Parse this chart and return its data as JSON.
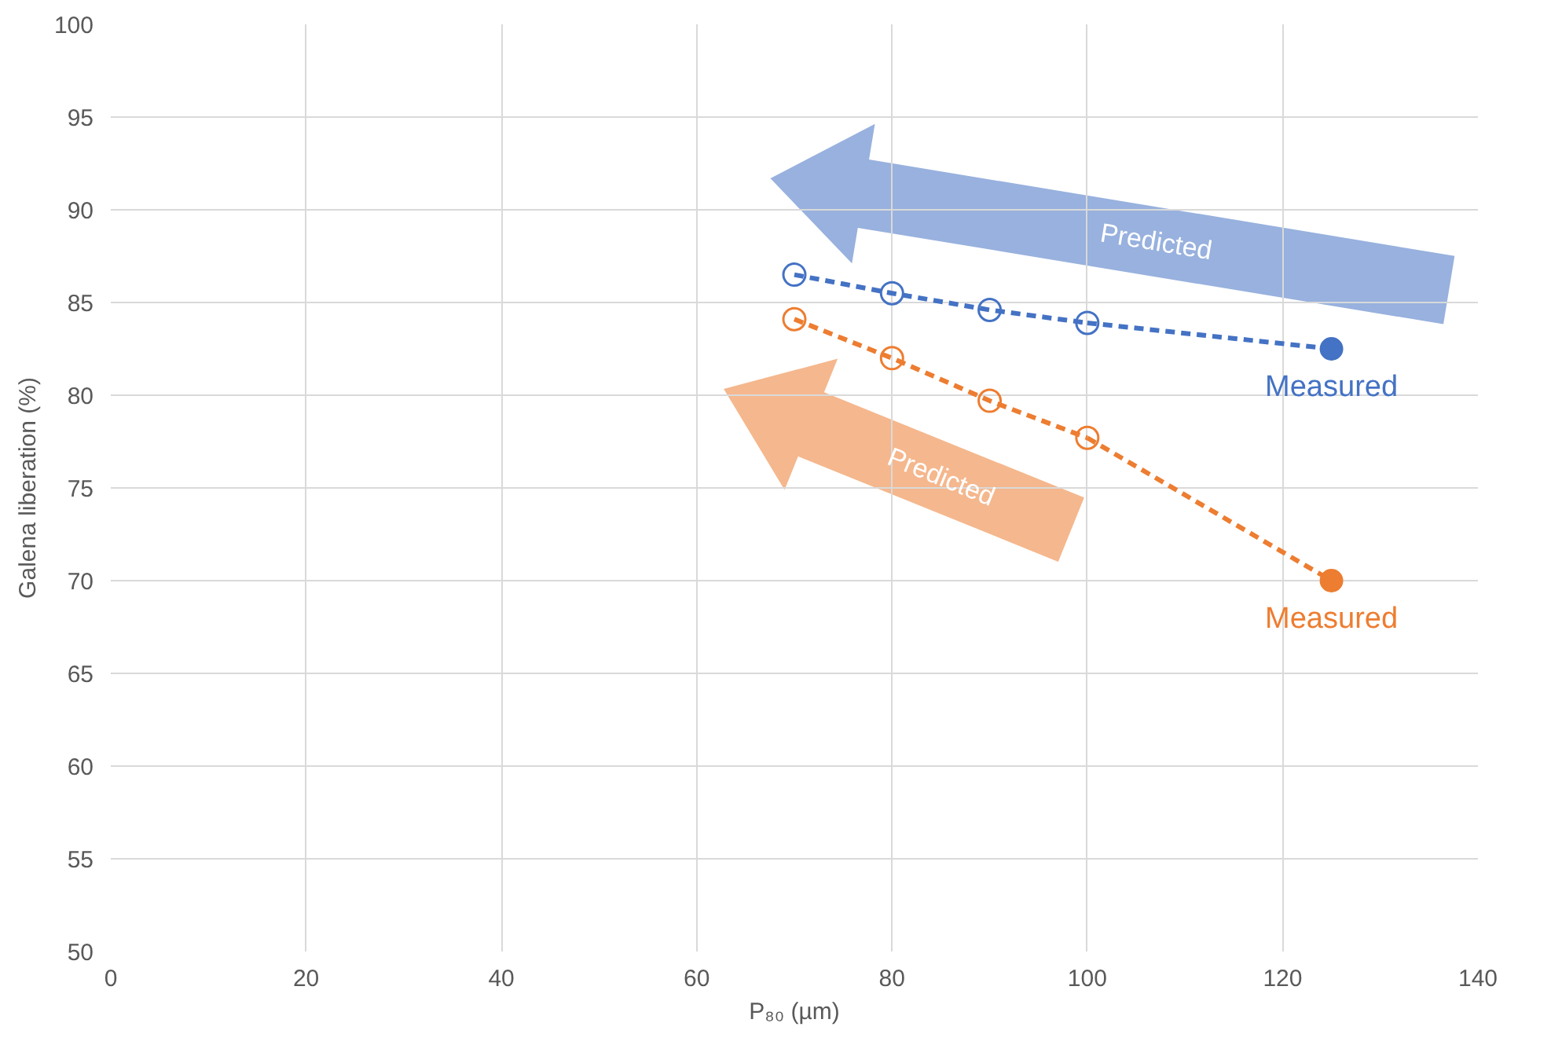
{
  "chart_data": {
    "type": "line",
    "xlabel": "P₈₀ (µm)",
    "ylabel": "Galena liberation (%)",
    "xlim": [
      0,
      140
    ],
    "xticks": [
      0,
      20,
      40,
      60,
      80,
      100,
      120,
      140
    ],
    "ylim": [
      50,
      100
    ],
    "yticks": [
      50,
      55,
      60,
      65,
      70,
      75,
      80,
      85,
      90,
      95,
      100
    ],
    "grid": true,
    "legend": false,
    "series": [
      {
        "name": "Predicted",
        "color": "#4472c4",
        "x": [
          70,
          80,
          90,
          100
        ],
        "values": [
          86.5,
          85.5,
          84.6,
          83.9
        ],
        "line_style": "dashed",
        "marker": "circle"
      },
      {
        "color": "#4472c4",
        "x": [
          100,
          125
        ],
        "values": [
          83.9,
          82.5
        ],
        "line_style": "dashed",
        "marker": "none"
      },
      {
        "type": "scatter",
        "name": "Measured",
        "color": "#4472c4",
        "x": [
          125
        ],
        "values": [
          82.5
        ],
        "marker": "circle"
      },
      {
        "name": "Predicted",
        "color": "#ed7d31",
        "x": [
          70,
          80,
          90,
          100
        ],
        "values": [
          84.1,
          82.0,
          79.7,
          77.7
        ],
        "line_style": "dashed",
        "marker": "circle"
      },
      {
        "color": "#ed7d31",
        "x": [
          100,
          125
        ],
        "values": [
          77.7,
          70.0
        ],
        "line_style": "dashed",
        "marker": "none"
      },
      {
        "type": "scatter",
        "name": "Measured",
        "color": "#ed7d31",
        "x": [
          125
        ],
        "values": [
          70.0
        ],
        "marker": "circle"
      }
    ]
  }
}
